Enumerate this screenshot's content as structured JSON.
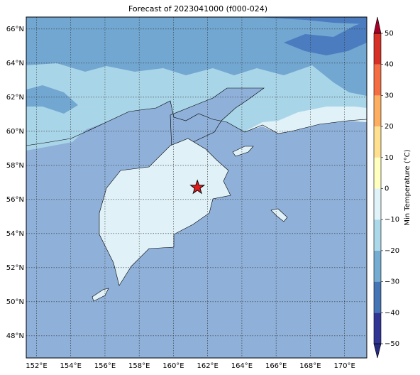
{
  "title": "Forecast of 2023041000 (f000-024)",
  "map": {
    "xlim": [
      151.4,
      171.3
    ],
    "ylim": [
      46.7,
      66.7
    ],
    "grid": true,
    "xticks": [
      {
        "value": 152,
        "label": "152°E"
      },
      {
        "value": 154,
        "label": "154°E"
      },
      {
        "value": 156,
        "label": "156°E"
      },
      {
        "value": 158,
        "label": "158°E"
      },
      {
        "value": 160,
        "label": "160°E"
      },
      {
        "value": 162,
        "label": "162°E"
      },
      {
        "value": 164,
        "label": "164°E"
      },
      {
        "value": 166,
        "label": "166°E"
      },
      {
        "value": 168,
        "label": "168°E"
      },
      {
        "value": 170,
        "label": "170°E"
      }
    ],
    "yticks": [
      {
        "value": 48,
        "label": "48°N"
      },
      {
        "value": 50,
        "label": "50°N"
      },
      {
        "value": 52,
        "label": "52°N"
      },
      {
        "value": 54,
        "label": "54°N"
      },
      {
        "value": 56,
        "label": "56°N"
      },
      {
        "value": 58,
        "label": "58°N"
      },
      {
        "value": 60,
        "label": "60°N"
      },
      {
        "value": 62,
        "label": "62°N"
      },
      {
        "value": 64,
        "label": "64°N"
      },
      {
        "value": 66,
        "label": "66°N"
      }
    ],
    "marker": {
      "lon": 161.4,
      "lat": 56.7,
      "color": "#e31a1c"
    }
  },
  "colorbar": {
    "label": "Min Temperature (°C)",
    "ticks": [
      {
        "value": -50,
        "label": "−50"
      },
      {
        "value": -40,
        "label": "−40"
      },
      {
        "value": -30,
        "label": "−30"
      },
      {
        "value": -20,
        "label": "−20"
      },
      {
        "value": -10,
        "label": "−10"
      },
      0,
      10,
      20,
      30,
      40,
      50
    ],
    "colors": [
      "#313695",
      "#4575b4",
      "#74add1",
      "#abd9e9",
      "#e0f3f8",
      "#ffffbf",
      "#fee090",
      "#fdae61",
      "#f46d43",
      "#d73027"
    ],
    "under_color": "#262a80",
    "over_color": "#a50026"
  }
}
